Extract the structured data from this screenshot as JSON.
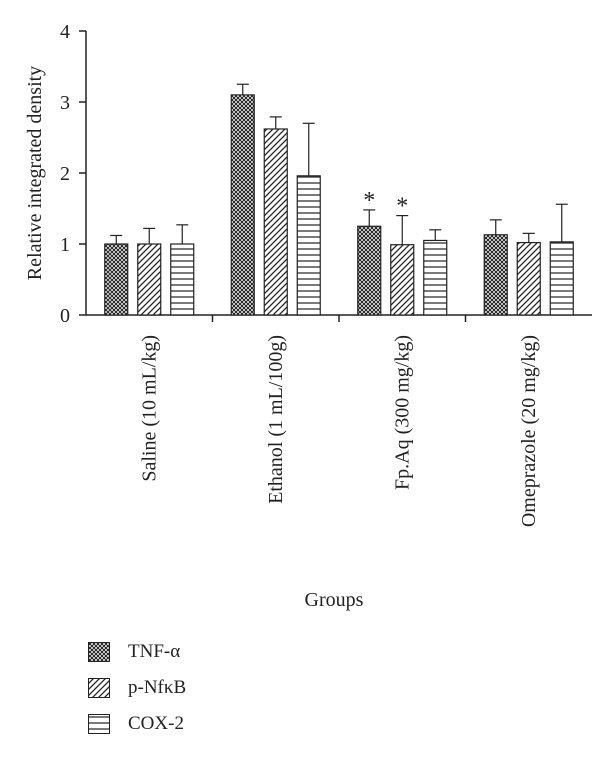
{
  "chart_data": {
    "type": "bar",
    "xlabel": "Groups",
    "ylabel": "Relative integrated density",
    "ylim": [
      0,
      4
    ],
    "yticks": [
      "0",
      "1",
      "2",
      "3",
      "4"
    ],
    "categories": [
      "Saline (10 mL/kg)",
      "Ethanol (1 mL/100g)",
      "Fp.Aq (300 mg/kg)",
      "Omeprazole (20 mg/kg)"
    ],
    "series": [
      {
        "name": "TNF-α",
        "pattern": "crosshatch",
        "values": [
          1.0,
          3.1,
          1.25,
          1.13
        ],
        "errors": [
          0.12,
          0.15,
          0.23,
          0.21
        ]
      },
      {
        "name": "p-NfκB",
        "pattern": "diagonal",
        "values": [
          1.0,
          2.62,
          0.99,
          1.02
        ],
        "errors": [
          0.22,
          0.17,
          0.41,
          0.13
        ]
      },
      {
        "name": "COX-2",
        "pattern": "horizontal",
        "values": [
          1.0,
          1.96,
          1.05,
          1.03
        ],
        "errors": [
          0.27,
          0.74,
          0.15,
          0.53
        ]
      }
    ],
    "annotations": [
      {
        "text": "*",
        "category": "Fp.Aq (300 mg/kg)",
        "series": "TNF-α"
      },
      {
        "text": "*",
        "category": "Fp.Aq (300 mg/kg)",
        "series": "p-NfκB"
      }
    ],
    "grid": false,
    "legend_position": "bottom-left",
    "colors": {
      "axis": "#222222",
      "bar_stroke": "#222222",
      "fill": "#ffffff"
    }
  }
}
